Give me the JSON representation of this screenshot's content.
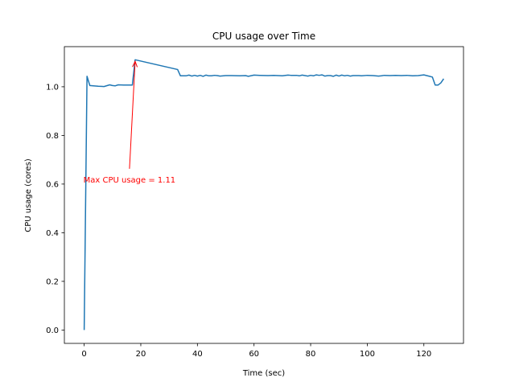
{
  "chart_data": {
    "type": "line",
    "title": "CPU usage over Time",
    "xlabel": "Time (sec)",
    "ylabel": "CPU usage (cores)",
    "xlim": [
      -7,
      134
    ],
    "ylim": [
      -0.055,
      1.165
    ],
    "xticks": [
      0,
      20,
      40,
      60,
      80,
      100,
      120
    ],
    "yticks": [
      0.0,
      0.2,
      0.4,
      0.6,
      0.8,
      1.0
    ],
    "ytick_labels": [
      "0.0",
      "0.2",
      "0.4",
      "0.6",
      "0.8",
      "1.0"
    ],
    "grid": false,
    "series": [
      {
        "color": "#1f77b4",
        "x": [
          0,
          1,
          2,
          5,
          7,
          9,
          10,
          11,
          12,
          14,
          15,
          17,
          18,
          33,
          34,
          36,
          37,
          38,
          39,
          40,
          41,
          42,
          43,
          44,
          45,
          46,
          47,
          48,
          50,
          52,
          55,
          57,
          58,
          60,
          62,
          65,
          67,
          70,
          72,
          73,
          75,
          76,
          77,
          78,
          79,
          80,
          81,
          82,
          83,
          84,
          85,
          86,
          87,
          88,
          89,
          90,
          91,
          92,
          93,
          94,
          95,
          96,
          97,
          98,
          100,
          102,
          104,
          105,
          106,
          108,
          110,
          112,
          114,
          116,
          118,
          120,
          122,
          123,
          124,
          125,
          126,
          127
        ],
        "y": [
          0.0,
          1.043,
          1.005,
          1.002,
          1.001,
          1.008,
          1.005,
          1.004,
          1.008,
          1.007,
          1.007,
          1.007,
          1.111,
          1.071,
          1.045,
          1.045,
          1.048,
          1.044,
          1.047,
          1.044,
          1.047,
          1.043,
          1.048,
          1.045,
          1.045,
          1.047,
          1.046,
          1.044,
          1.046,
          1.046,
          1.045,
          1.046,
          1.043,
          1.048,
          1.047,
          1.046,
          1.047,
          1.045,
          1.048,
          1.047,
          1.047,
          1.045,
          1.048,
          1.046,
          1.044,
          1.047,
          1.045,
          1.049,
          1.047,
          1.049,
          1.044,
          1.046,
          1.046,
          1.043,
          1.048,
          1.044,
          1.048,
          1.045,
          1.047,
          1.044,
          1.046,
          1.046,
          1.046,
          1.045,
          1.047,
          1.046,
          1.044,
          1.045,
          1.047,
          1.046,
          1.047,
          1.046,
          1.047,
          1.045,
          1.046,
          1.049,
          1.043,
          1.04,
          1.007,
          1.007,
          1.016,
          1.033
        ]
      }
    ],
    "annotation": {
      "text": "Max CPU usage = 1.11",
      "xy": [
        18,
        1.111
      ],
      "text_at": [
        16,
        0.62
      ],
      "color": "#ff0000"
    }
  }
}
